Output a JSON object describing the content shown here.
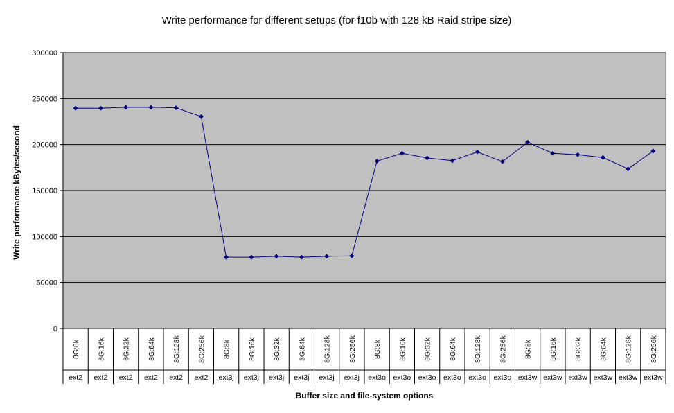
{
  "chart_data": {
    "type": "line",
    "title": "Write performance for different setups (for f10b with 128 kB Raid stripe size)",
    "xlabel": "Buffer size and file-system options",
    "ylabel": "Write performance kBytes/second",
    "ylim": [
      0,
      300000
    ],
    "yticks": [
      0,
      50000,
      100000,
      150000,
      200000,
      250000,
      300000
    ],
    "grid": true,
    "legend": "none",
    "colors": {
      "plot_bg": "#c0c0c0",
      "line": "#000080",
      "grid": "#000000"
    },
    "categories": [
      {
        "buffer": "8G:8k",
        "fs": "ext2"
      },
      {
        "buffer": "8G:16k",
        "fs": "ext2"
      },
      {
        "buffer": "8G:32k",
        "fs": "ext2"
      },
      {
        "buffer": "8G:64k",
        "fs": "ext2"
      },
      {
        "buffer": "8G:128k",
        "fs": "ext2"
      },
      {
        "buffer": "8G:256k",
        "fs": "ext2"
      },
      {
        "buffer": "8G:8k",
        "fs": "ext3j"
      },
      {
        "buffer": "8G:16k",
        "fs": "ext3j"
      },
      {
        "buffer": "8G:32k",
        "fs": "ext3j"
      },
      {
        "buffer": "8G:64k",
        "fs": "ext3j"
      },
      {
        "buffer": "8G:128k",
        "fs": "ext3j"
      },
      {
        "buffer": "8G:256k",
        "fs": "ext3j"
      },
      {
        "buffer": "8G:8k",
        "fs": "ext3o"
      },
      {
        "buffer": "8G:16k",
        "fs": "ext3o"
      },
      {
        "buffer": "8G:32k",
        "fs": "ext3o"
      },
      {
        "buffer": "8G:64k",
        "fs": "ext3o"
      },
      {
        "buffer": "8G:128k",
        "fs": "ext3o"
      },
      {
        "buffer": "8G:256k",
        "fs": "ext3o"
      },
      {
        "buffer": "8G:8k",
        "fs": "ext3w"
      },
      {
        "buffer": "8G:16k",
        "fs": "ext3w"
      },
      {
        "buffer": "8G:32k",
        "fs": "ext3w"
      },
      {
        "buffer": "8G:64k",
        "fs": "ext3w"
      },
      {
        "buffer": "8G:128k",
        "fs": "ext3w"
      },
      {
        "buffer": "8G:256k",
        "fs": "ext3w"
      }
    ],
    "series": [
      {
        "values": [
          239500,
          239500,
          240500,
          240500,
          240000,
          230500,
          77500,
          77500,
          78500,
          77500,
          78500,
          79000,
          182000,
          190500,
          185500,
          182500,
          192000,
          181500,
          202500,
          190500,
          189000,
          186000,
          173500,
          193000
        ]
      }
    ]
  }
}
